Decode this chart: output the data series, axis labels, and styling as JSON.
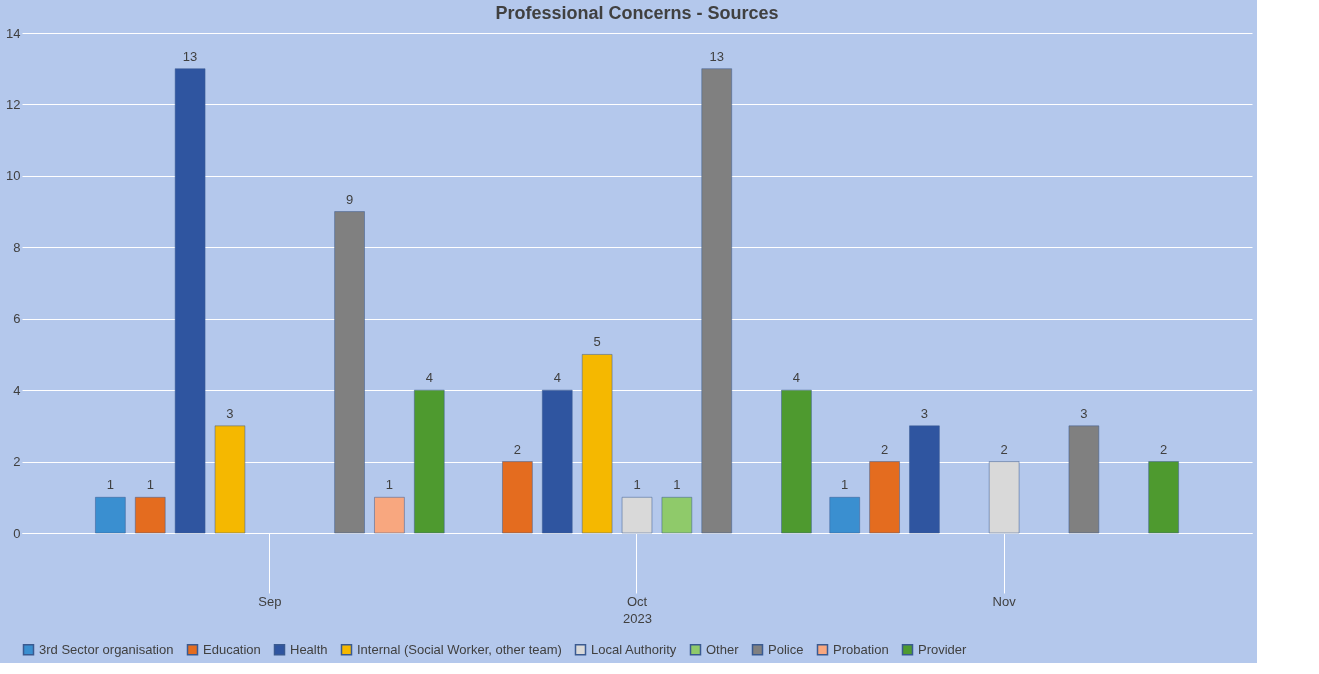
{
  "chart_data": {
    "type": "bar",
    "title": "Professional Concerns - Sources",
    "xlabel": "2023",
    "categories": [
      "Sep",
      "Oct",
      "Nov"
    ],
    "series": [
      {
        "name": "3rd Sector organisation",
        "color": "#3a8fd0",
        "values": [
          1,
          null,
          1
        ]
      },
      {
        "name": "Education",
        "color": "#e46c1f",
        "values": [
          1,
          2,
          2
        ]
      },
      {
        "name": "Health",
        "color": "#2f55a0",
        "values": [
          13,
          4,
          3
        ]
      },
      {
        "name": "Internal (Social Worker, other team)",
        "color": "#f5b800",
        "values": [
          3,
          5,
          null
        ]
      },
      {
        "name": "Local Authority",
        "color": "#d9d9d9",
        "values": [
          null,
          1,
          2
        ]
      },
      {
        "name": "Other",
        "color": "#8fca6a",
        "values": [
          null,
          1,
          null
        ]
      },
      {
        "name": "Police",
        "color": "#808080",
        "values": [
          9,
          13,
          3
        ]
      },
      {
        "name": "Probation",
        "color": "#f8a77f",
        "values": [
          1,
          null,
          null
        ]
      },
      {
        "name": "Provider",
        "color": "#4e9a2f",
        "values": [
          4,
          4,
          2
        ]
      }
    ],
    "ylim": [
      0,
      14
    ],
    "yticks": [
      0,
      2,
      4,
      6,
      8,
      10,
      12,
      14
    ],
    "grid": "y",
    "legend": "bottom",
    "data_labels": true
  }
}
